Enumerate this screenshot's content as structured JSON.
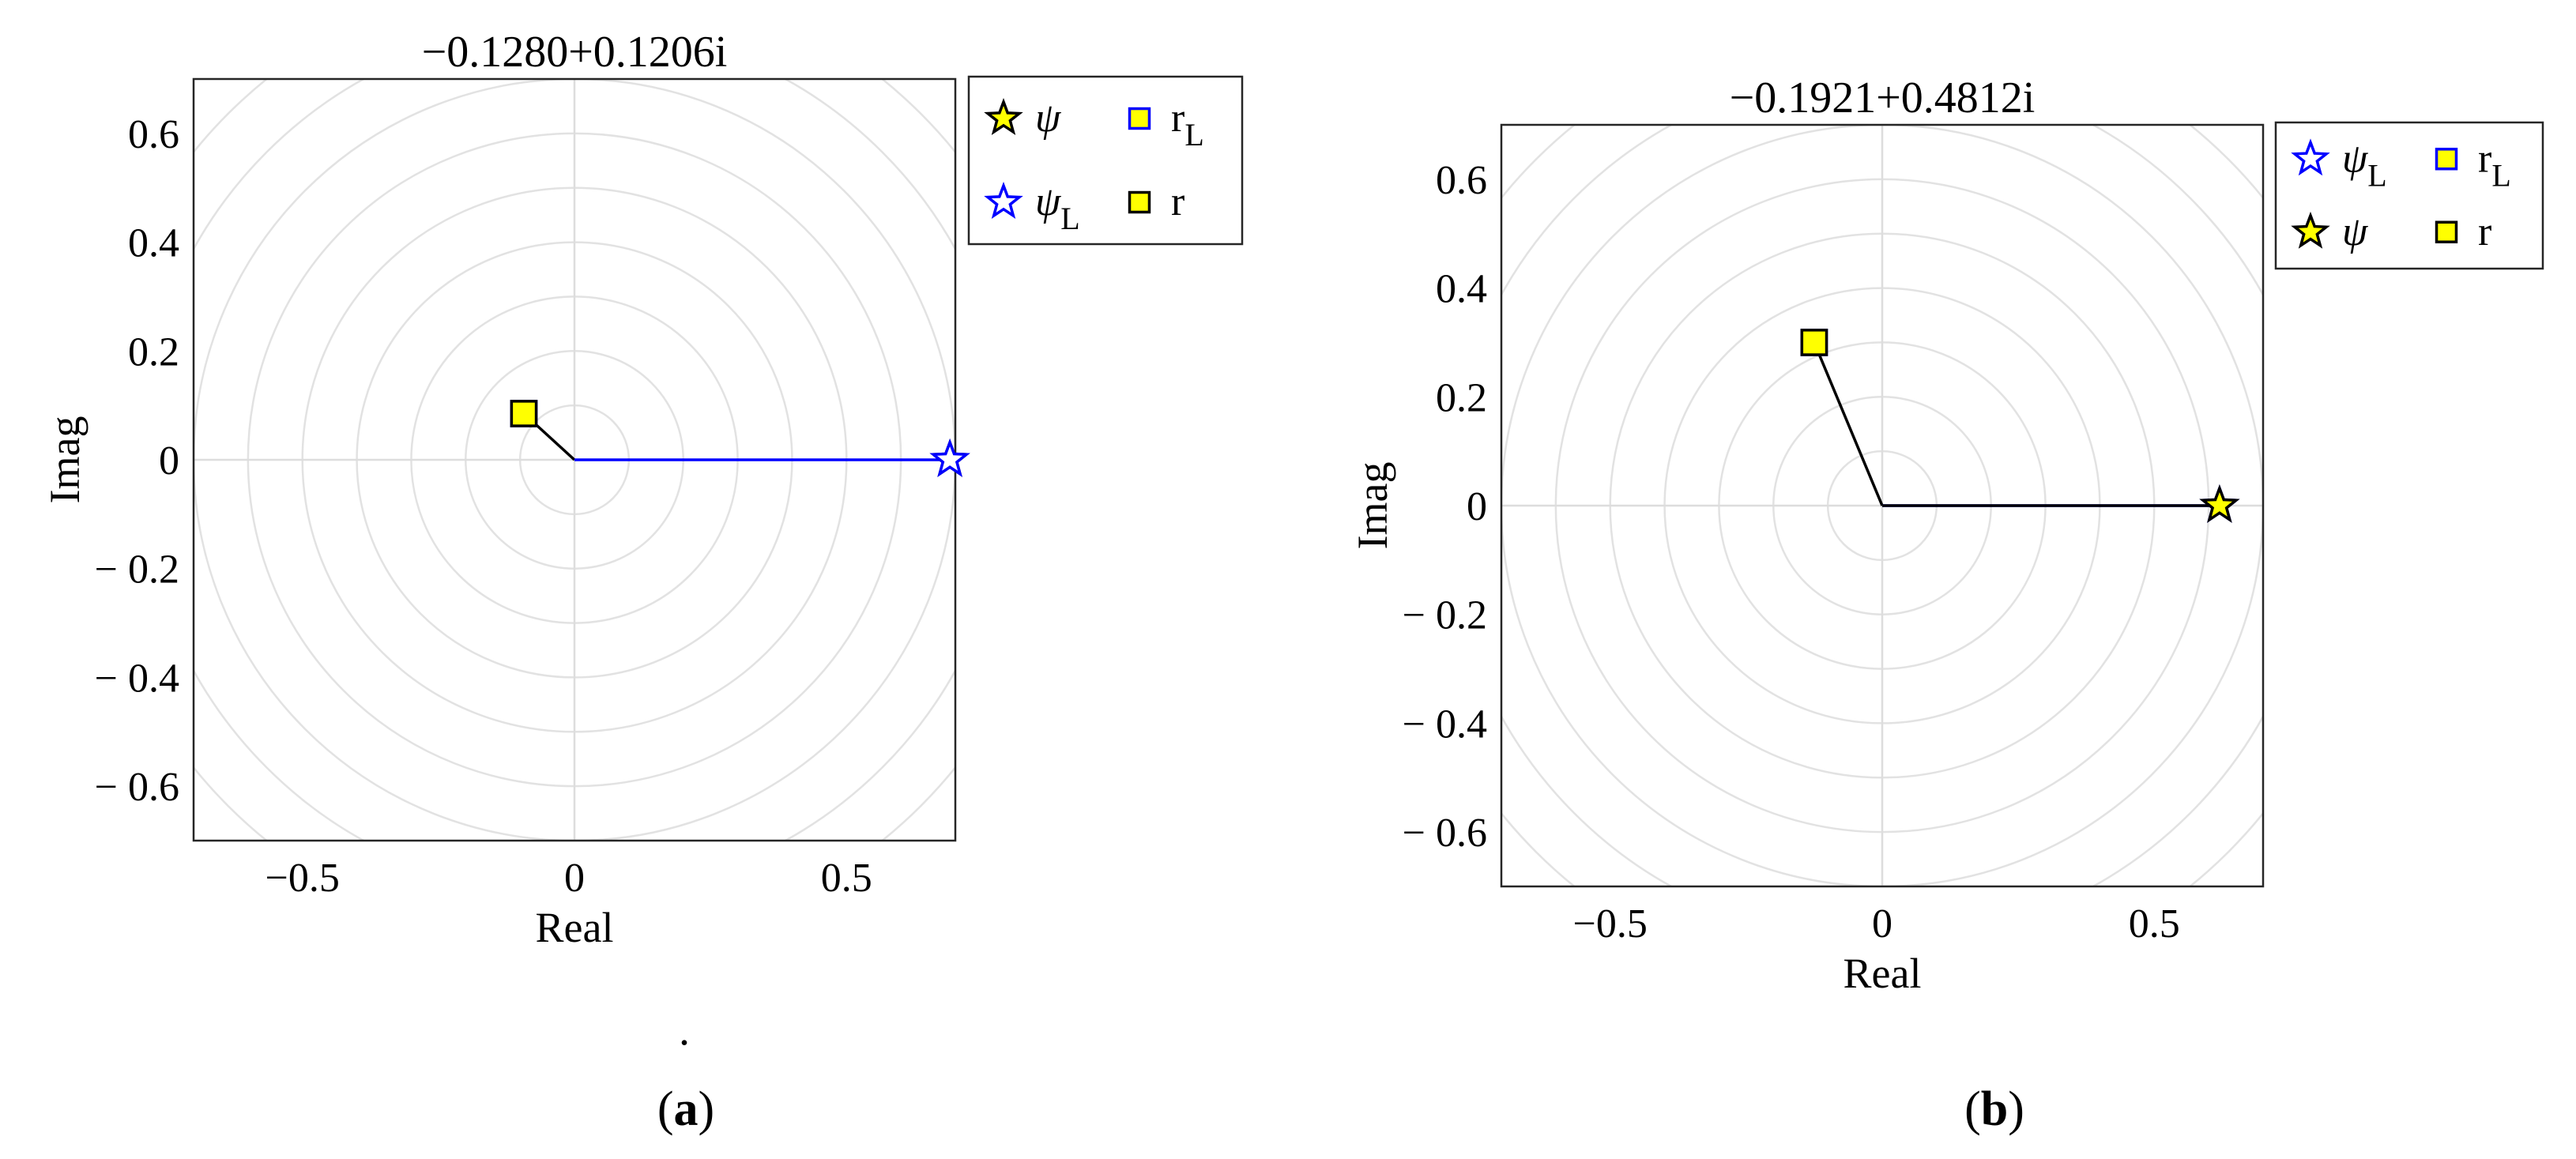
{
  "chart_data": [
    {
      "type": "scatter",
      "panel_label": "(a)",
      "title": "−0.1280+0.1206i",
      "xlabel": "Real",
      "ylabel": "Imag",
      "xlim": [
        -0.7,
        0.7
      ],
      "ylim": [
        -0.7,
        0.7
      ],
      "xticks": [
        -0.5,
        0,
        0.5
      ],
      "xtick_labels": [
        "−0.5",
        "0",
        "0.5"
      ],
      "yticks": [
        0.6,
        0.4,
        0.2,
        0,
        -0.2,
        -0.4,
        -0.6
      ],
      "ytick_labels": [
        "0.6",
        "0.4",
        "0.2",
        "0",
        "− 0.2",
        "− 0.4",
        "− 0.6"
      ],
      "grid": "polar",
      "grid_radii": [
        0.1,
        0.2,
        0.3,
        0.4,
        0.5,
        0.6,
        0.7,
        0.8,
        0.9
      ],
      "stray_mark": ".",
      "series": [
        {
          "name": "ψ",
          "marker": "star",
          "face": "#ffff00",
          "edge": "#000000",
          "x": 0.69,
          "y": 0.0
        },
        {
          "name": "ψ",
          "sub": "L",
          "marker": "star",
          "face": "#ffffff",
          "edge": "#0000ff",
          "x": 0.69,
          "y": 0.0
        },
        {
          "name": "r",
          "sub": "L",
          "marker": "square",
          "face": "#ffff00",
          "edge": "#0000ff",
          "x": -0.093,
          "y": 0.085
        },
        {
          "name": "r",
          "marker": "square",
          "face": "#ffff00",
          "edge": "#000000",
          "x": -0.093,
          "y": 0.085
        }
      ],
      "lines": [
        {
          "color": "#000000",
          "x": [
            -0.093,
            0.0
          ],
          "y": [
            0.085,
            0.0
          ]
        },
        {
          "color": "#0000ff",
          "x": [
            0.0,
            0.69
          ],
          "y": [
            0.0,
            0.0
          ]
        }
      ],
      "legend": {
        "placement": "outside-right-top",
        "entries": [
          {
            "label": "ψ",
            "sub": "",
            "marker": "star",
            "face": "#ffff00",
            "edge": "#000000",
            "col": 0,
            "row": 0
          },
          {
            "label": "ψ",
            "sub": "L",
            "marker": "star",
            "face": "#ffffff",
            "edge": "#0000ff",
            "col": 0,
            "row": 1
          },
          {
            "label": "r",
            "sub": "L",
            "marker": "square",
            "face": "#ffff00",
            "edge": "#0000ff",
            "col": 1,
            "row": 0
          },
          {
            "label": "r",
            "sub": "",
            "marker": "square",
            "face": "#ffff00",
            "edge": "#000000",
            "col": 1,
            "row": 1
          }
        ]
      }
    },
    {
      "type": "scatter",
      "panel_label": "(b)",
      "title": "−0.1921+0.4812i",
      "xlabel": "Real",
      "ylabel": "Imag",
      "xlim": [
        -0.7,
        0.7
      ],
      "ylim": [
        -0.7,
        0.7
      ],
      "xticks": [
        -0.5,
        0,
        0.5
      ],
      "xtick_labels": [
        "−0.5",
        "0",
        "0.5"
      ],
      "yticks": [
        0.6,
        0.4,
        0.2,
        0,
        -0.2,
        -0.4,
        -0.6
      ],
      "ytick_labels": [
        "0.6",
        "0.4",
        "0.2",
        "0",
        "− 0.2",
        "− 0.4",
        "− 0.6"
      ],
      "grid": "polar",
      "grid_radii": [
        0.1,
        0.2,
        0.3,
        0.4,
        0.5,
        0.6,
        0.7,
        0.8,
        0.9
      ],
      "series": [
        {
          "name": "ψ",
          "sub": "L",
          "marker": "star",
          "face": "#ffffff",
          "edge": "#0000ff",
          "x": 0.62,
          "y": 0.0
        },
        {
          "name": "ψ",
          "marker": "star",
          "face": "#ffff00",
          "edge": "#000000",
          "x": 0.62,
          "y": 0.0
        },
        {
          "name": "r",
          "sub": "L",
          "marker": "square",
          "face": "#ffff00",
          "edge": "#0000ff",
          "x": -0.125,
          "y": 0.3
        },
        {
          "name": "r",
          "marker": "square",
          "face": "#ffff00",
          "edge": "#000000",
          "x": -0.125,
          "y": 0.3
        }
      ],
      "lines": [
        {
          "color": "#000000",
          "x": [
            -0.125,
            0.0
          ],
          "y": [
            0.3,
            0.0
          ]
        },
        {
          "color": "#0000ff",
          "x": [
            0.0,
            0.62
          ],
          "y": [
            0.0,
            0.0
          ]
        },
        {
          "color": "#000000",
          "x": [
            0.0,
            0.62
          ],
          "y": [
            0.0,
            0.0
          ]
        }
      ],
      "legend": {
        "placement": "outside-right-top",
        "entries": [
          {
            "label": "ψ",
            "sub": "L",
            "marker": "star",
            "face": "#ffffff",
            "edge": "#0000ff",
            "col": 0,
            "row": 0
          },
          {
            "label": "ψ",
            "sub": "",
            "marker": "star",
            "face": "#ffff00",
            "edge": "#000000",
            "col": 0,
            "row": 1
          },
          {
            "label": "r",
            "sub": "L",
            "marker": "square",
            "face": "#ffff00",
            "edge": "#0000ff",
            "col": 1,
            "row": 0
          },
          {
            "label": "r",
            "sub": "",
            "marker": "square",
            "face": "#ffff00",
            "edge": "#000000",
            "col": 1,
            "row": 1
          }
        ]
      }
    }
  ]
}
